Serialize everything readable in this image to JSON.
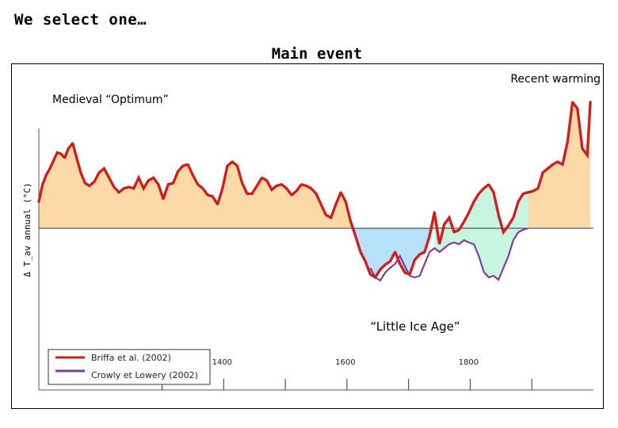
{
  "slide": {
    "title": "We select one…",
    "main_title": "Main event"
  },
  "colors": {
    "warm_fill": "#fcd9a7",
    "cold_fill": "#b7e1f8",
    "recovery_fill": "#c7f5e0",
    "briffa": "#cc1f1f",
    "crowly": "#7d3f98"
  },
  "chart_data": {
    "type": "area",
    "ylabel": "Δ T_av annual (°C)",
    "xlabel": "",
    "xlim": [
      1100,
      2000
    ],
    "ylim": [
      -1.0,
      1.05
    ],
    "x_ticks": [
      1400,
      1600,
      1800
    ],
    "annotations": {
      "medieval": "Medieval “Optimum”",
      "recent": "Recent warming",
      "little_ice_age": "“Little Ice Age”"
    },
    "legend": {
      "position": "bottom-left"
    },
    "series": [
      {
        "name": "Briffa et al. (2002)",
        "x": [
          1100,
          1106,
          1112,
          1118,
          1125,
          1130,
          1136,
          1142,
          1148,
          1155,
          1162,
          1168,
          1175,
          1182,
          1190,
          1198,
          1206,
          1214,
          1222,
          1230,
          1238,
          1246,
          1254,
          1262,
          1270,
          1278,
          1286,
          1294,
          1302,
          1310,
          1318,
          1326,
          1334,
          1342,
          1350,
          1358,
          1366,
          1374,
          1382,
          1390,
          1398,
          1406,
          1414,
          1422,
          1430,
          1438,
          1446,
          1454,
          1462,
          1470,
          1478,
          1486,
          1494,
          1502,
          1510,
          1518,
          1526,
          1534,
          1542,
          1550,
          1558,
          1566,
          1574,
          1582,
          1590,
          1598,
          1606,
          1614,
          1622,
          1630,
          1638,
          1646,
          1654,
          1662,
          1670,
          1678,
          1686,
          1694,
          1702,
          1710,
          1718,
          1726,
          1734,
          1742,
          1750,
          1758,
          1766,
          1774,
          1782,
          1790,
          1798,
          1806,
          1814,
          1822,
          1830,
          1838,
          1846,
          1854,
          1862,
          1870,
          1878,
          1886,
          1894,
          1902,
          1910,
          1918,
          1926,
          1934,
          1942,
          1950,
          1958,
          1966,
          1974,
          1982,
          1990,
          1995
        ],
        "values": [
          0.2,
          0.33,
          0.4,
          0.45,
          0.52,
          0.57,
          0.56,
          0.53,
          0.6,
          0.64,
          0.52,
          0.42,
          0.34,
          0.32,
          0.35,
          0.42,
          0.45,
          0.38,
          0.31,
          0.27,
          0.3,
          0.31,
          0.3,
          0.38,
          0.3,
          0.36,
          0.38,
          0.33,
          0.22,
          0.33,
          0.34,
          0.43,
          0.47,
          0.48,
          0.4,
          0.33,
          0.3,
          0.25,
          0.24,
          0.18,
          0.3,
          0.47,
          0.5,
          0.47,
          0.34,
          0.26,
          0.26,
          0.32,
          0.38,
          0.36,
          0.29,
          0.32,
          0.33,
          0.3,
          0.25,
          0.28,
          0.33,
          0.32,
          0.3,
          0.26,
          0.18,
          0.1,
          0.08,
          0.18,
          0.27,
          0.2,
          0.05,
          -0.1,
          -0.3,
          -0.42,
          -0.58,
          -0.62,
          -0.52,
          -0.46,
          -0.42,
          -0.3,
          -0.45,
          -0.56,
          -0.58,
          -0.4,
          -0.33,
          -0.3,
          -0.1,
          0.12,
          -0.2,
          0.03,
          0.08,
          -0.05,
          -0.02,
          0.05,
          0.12,
          0.2,
          0.26,
          0.3,
          0.33,
          0.27,
          0.1,
          -0.05,
          0.02,
          0.08,
          0.2,
          0.26,
          0.27,
          0.28,
          0.3,
          0.42,
          0.45,
          0.48,
          0.5,
          0.48,
          0.65,
          0.95,
          0.9,
          0.6,
          0.55,
          0.95
        ]
      },
      {
        "name": "Crowly et Lowery (2002)",
        "x": [
          1638,
          1646,
          1654,
          1662,
          1670,
          1678,
          1686,
          1694,
          1702,
          1710,
          1718,
          1726,
          1734,
          1742,
          1750,
          1758,
          1766,
          1774,
          1782,
          1790,
          1798,
          1806,
          1814,
          1822,
          1830,
          1838,
          1846,
          1854,
          1862,
          1870,
          1878,
          1886,
          1894
        ],
        "values": [
          -0.5,
          -0.62,
          -0.66,
          -0.56,
          -0.5,
          -0.45,
          -0.35,
          -0.48,
          -0.6,
          -0.62,
          -0.6,
          -0.45,
          -0.3,
          -0.25,
          -0.3,
          -0.25,
          -0.2,
          -0.18,
          -0.2,
          -0.15,
          -0.18,
          -0.2,
          -0.35,
          -0.55,
          -0.62,
          -0.6,
          -0.65,
          -0.5,
          -0.35,
          -0.15,
          -0.05,
          -0.02,
          0.0
        ]
      }
    ]
  }
}
